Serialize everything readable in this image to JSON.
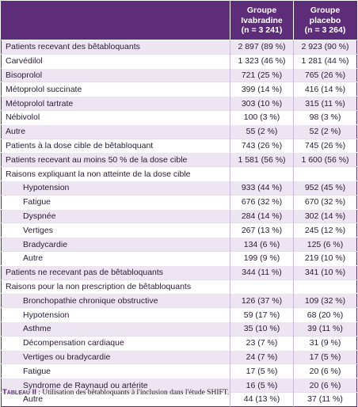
{
  "table": {
    "header": {
      "ivabradine": [
        "Groupe",
        "Ivabradine",
        "(n = 3 241)"
      ],
      "placebo": [
        "Groupe",
        "placebo",
        "(n = 3 264)"
      ]
    },
    "rows": [
      {
        "label": "Patients recevant des bêtabloquants",
        "ivabradine": "2 897 (89 %)",
        "placebo": "2 923 (90 %)"
      },
      {
        "label": "Carvédilol",
        "ivabradine": "1 323 (46 %)",
        "placebo": "1 281 (44 %)"
      },
      {
        "label": "Bisoprolol",
        "ivabradine": "721 (25 %)",
        "placebo": "765 (26 %)"
      },
      {
        "label": "Métoprolol succinate",
        "ivabradine": "399 (14 %)",
        "placebo": "416 (14 %)"
      },
      {
        "label": "Métoprolol tartrate",
        "ivabradine": "303 (10 %)",
        "placebo": "315 (11 %)"
      },
      {
        "label": "Nébivolol",
        "ivabradine": "100 (3 %)",
        "placebo": "98 (3 %)"
      },
      {
        "label": "Autre",
        "ivabradine": "55 (2 %)",
        "placebo": "52 (2 %)"
      },
      {
        "label": "Patients à la dose cible de bêtabloquant",
        "ivabradine": "743 (26 %)",
        "placebo": "745 (26 %)"
      },
      {
        "label": "Patients recevant au moins 50 % de la dose cible",
        "ivabradine": "1 581 (56 %)",
        "placebo": "1 600 (56 %)"
      },
      {
        "label": "Raisons expliquant la non atteinte de la dose cible"
      },
      {
        "label": "Hypotension",
        "ivabradine": "933 (44 %)",
        "placebo": "952 (45 %)",
        "indent": true
      },
      {
        "label": "Fatigue",
        "ivabradine": "676 (32 %)",
        "placebo": "670 (32 %)",
        "indent": true
      },
      {
        "label": "Dyspnée",
        "ivabradine": "284 (14 %)",
        "placebo": "302 (14 %)",
        "indent": true
      },
      {
        "label": "Vertiges",
        "ivabradine": "267 (13 %)",
        "placebo": "245 (12 %)",
        "indent": true
      },
      {
        "label": "Bradycardie",
        "ivabradine": "134 (6 %)",
        "placebo": "125 (6 %)",
        "indent": true
      },
      {
        "label": "Autre",
        "ivabradine": "199 (9 %)",
        "placebo": "219 (10 %)",
        "indent": true
      },
      {
        "label": "Patients ne recevant pas de bêtabloquants",
        "ivabradine": "344 (11 %)",
        "placebo": "341 (10 %)"
      },
      {
        "label": "Raisons pour la non prescription de bêtabloquants"
      },
      {
        "label": "Bronchopathie chronique obstructive",
        "ivabradine": "126 (37 %)",
        "placebo": "109 (32 %)",
        "indent": true
      },
      {
        "label": "Hypotension",
        "ivabradine": "59 (17 %)",
        "placebo": "68 (20 %)",
        "indent": true
      },
      {
        "label": "Asthme",
        "ivabradine": "35 (10 %)",
        "placebo": "39 (11 %)",
        "indent": true
      },
      {
        "label": "Décompensation cardiaque",
        "ivabradine": "23 (7 %)",
        "placebo": "31 (9 %)",
        "indent": true
      },
      {
        "label": "Vertiges ou bradycardie",
        "ivabradine": "24 (7 %)",
        "placebo": "17 (5 %)",
        "indent": true
      },
      {
        "label": "Fatigue",
        "ivabradine": "17 (5 %)",
        "placebo": "20 (6 %)",
        "indent": true
      },
      {
        "label": "Syndrome de Raynaud ou artérite",
        "ivabradine": "16 (5 %)",
        "placebo": "20 (6 %)",
        "indent": true
      },
      {
        "label": "Autre",
        "ivabradine": "44 (13 %)",
        "placebo": "37 (11 %)",
        "indent": true
      }
    ]
  },
  "caption": {
    "label": "Tableau II",
    "text": " : Utilisation des bêtabloquants à l'inclusion dans l'étude SHIFT."
  }
}
